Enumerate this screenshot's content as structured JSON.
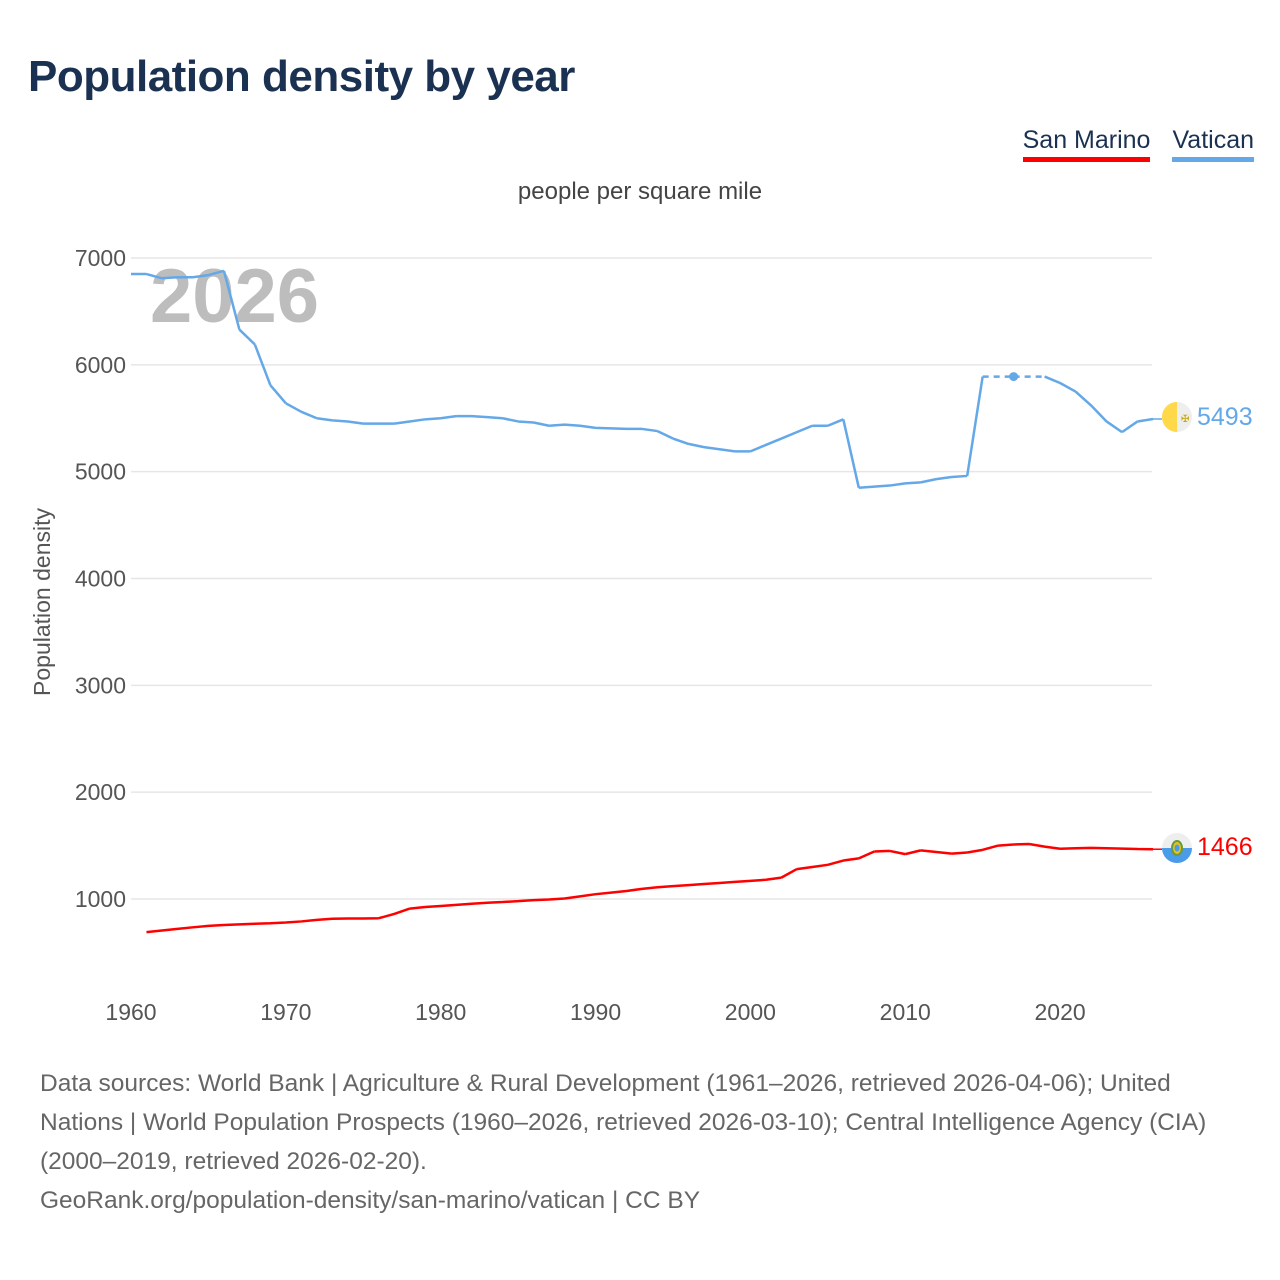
{
  "title": "Population density by year",
  "legend": [
    {
      "name": "San Marino",
      "color": "#ff0000"
    },
    {
      "name": "Vatican",
      "color": "#64a8e8"
    }
  ],
  "chart_data": {
    "type": "line",
    "title": "Population density by year",
    "subtitle": "people per square mile",
    "ylabel": "Population density",
    "xlabel": "",
    "year_watermark": "2026",
    "xlim": [
      1960,
      2026
    ],
    "ylim": [
      200,
      7000
    ],
    "x_ticks": [
      1960,
      1970,
      1980,
      1990,
      2000,
      2010,
      2020
    ],
    "y_ticks": [
      1000,
      2000,
      3000,
      4000,
      5000,
      6000,
      7000
    ],
    "grid": true,
    "legend_position": "top-right",
    "series": [
      {
        "name": "Vatican",
        "color": "#64a8e8",
        "end_label": "5493",
        "start_year": 1960,
        "values": [
          6850,
          6850,
          6810,
          6820,
          6820,
          6840,
          6880,
          6330,
          6190,
          5810,
          5640,
          5560,
          5500,
          5480,
          5470,
          5450,
          5450,
          5450,
          5470,
          5490,
          5500,
          5520,
          5520,
          5510,
          5500,
          5470,
          5460,
          5430,
          5440,
          5430,
          5410,
          5405,
          5400,
          5400,
          5380,
          5310,
          5260,
          5230,
          5210,
          5190,
          5190,
          5250,
          5310,
          5370,
          5430,
          5430,
          5490,
          4850,
          4860,
          4870,
          4890,
          4900,
          4930,
          4950,
          4960,
          5890,
          null,
          5890,
          null,
          5890,
          5830,
          5750,
          5620,
          5470,
          5370,
          5470,
          5493
        ]
      },
      {
        "name": "San Marino",
        "color": "#ff0000",
        "end_label": "1466",
        "start_year": 1961,
        "values": [
          690,
          705,
          720,
          735,
          748,
          757,
          763,
          768,
          773,
          780,
          790,
          805,
          815,
          818,
          818,
          820,
          860,
          910,
          925,
          935,
          945,
          955,
          965,
          972,
          980,
          990,
          995,
          1005,
          1025,
          1045,
          1060,
          1075,
          1095,
          1110,
          1120,
          1130,
          1140,
          1150,
          1160,
          1170,
          1180,
          1200,
          1280,
          1300,
          1320,
          1360,
          1380,
          1445,
          1450,
          1420,
          1455,
          1440,
          1425,
          1435,
          1460,
          1500,
          1510,
          1515,
          1490,
          1470,
          1475,
          1478,
          1475,
          1472,
          1468,
          1466
        ]
      }
    ]
  },
  "footer": {
    "sources": "Data sources: World Bank | Agriculture & Rural Development (1961–2026, retrieved 2026-04-06); United Nations | World Population Prospects (1960–2026, retrieved 2026-03-10); Central Intelligence Agency (CIA) (2000–2019, retrieved 2026-02-20).",
    "link": "GeoRank.org/population-density/san-marino/vatican",
    "license": " | CC BY"
  }
}
